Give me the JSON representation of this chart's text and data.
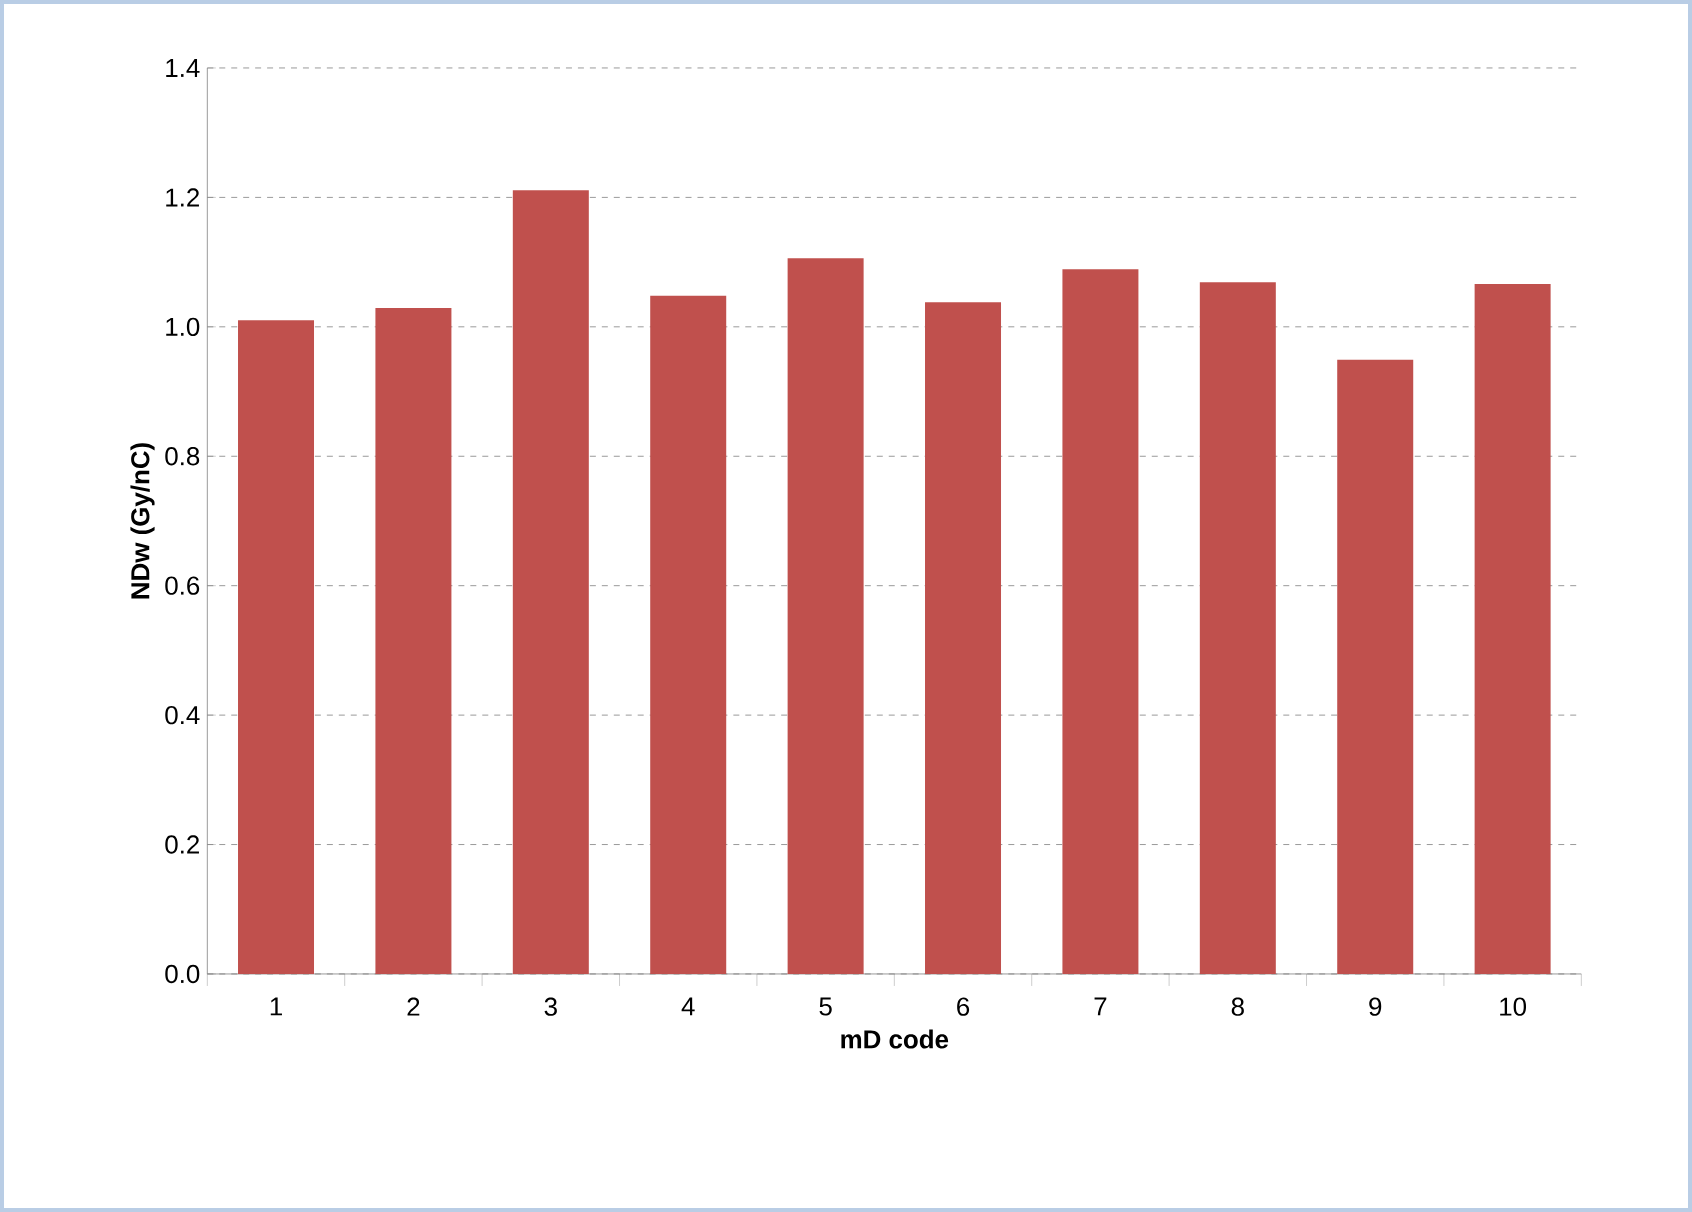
{
  "chart_data": {
    "type": "bar",
    "xlabel": "mD code",
    "ylabel": "NDw (Gy/nC)",
    "categories": [
      "1",
      "2",
      "3",
      "4",
      "5",
      "6",
      "7",
      "8",
      "9",
      "10"
    ],
    "values": [
      1.01,
      1.029,
      1.211,
      1.048,
      1.106,
      1.038,
      1.089,
      1.069,
      0.949,
      1.066
    ],
    "color": "#c0504d",
    "ylim": [
      0,
      1.4
    ],
    "yticks": [
      {
        "value": 0,
        "label": "0.0"
      },
      {
        "value": 0.2,
        "label": "0.2"
      },
      {
        "value": 0.4,
        "label": "0.4"
      },
      {
        "value": 0.6,
        "label": "0.6"
      },
      {
        "value": 0.8,
        "label": "0.8"
      },
      {
        "value": 1.0,
        "label": "1.0"
      },
      {
        "value": 1.2,
        "label": "1.2"
      },
      {
        "value": 1.4,
        "label": "1.4"
      }
    ],
    "grid": "y"
  }
}
